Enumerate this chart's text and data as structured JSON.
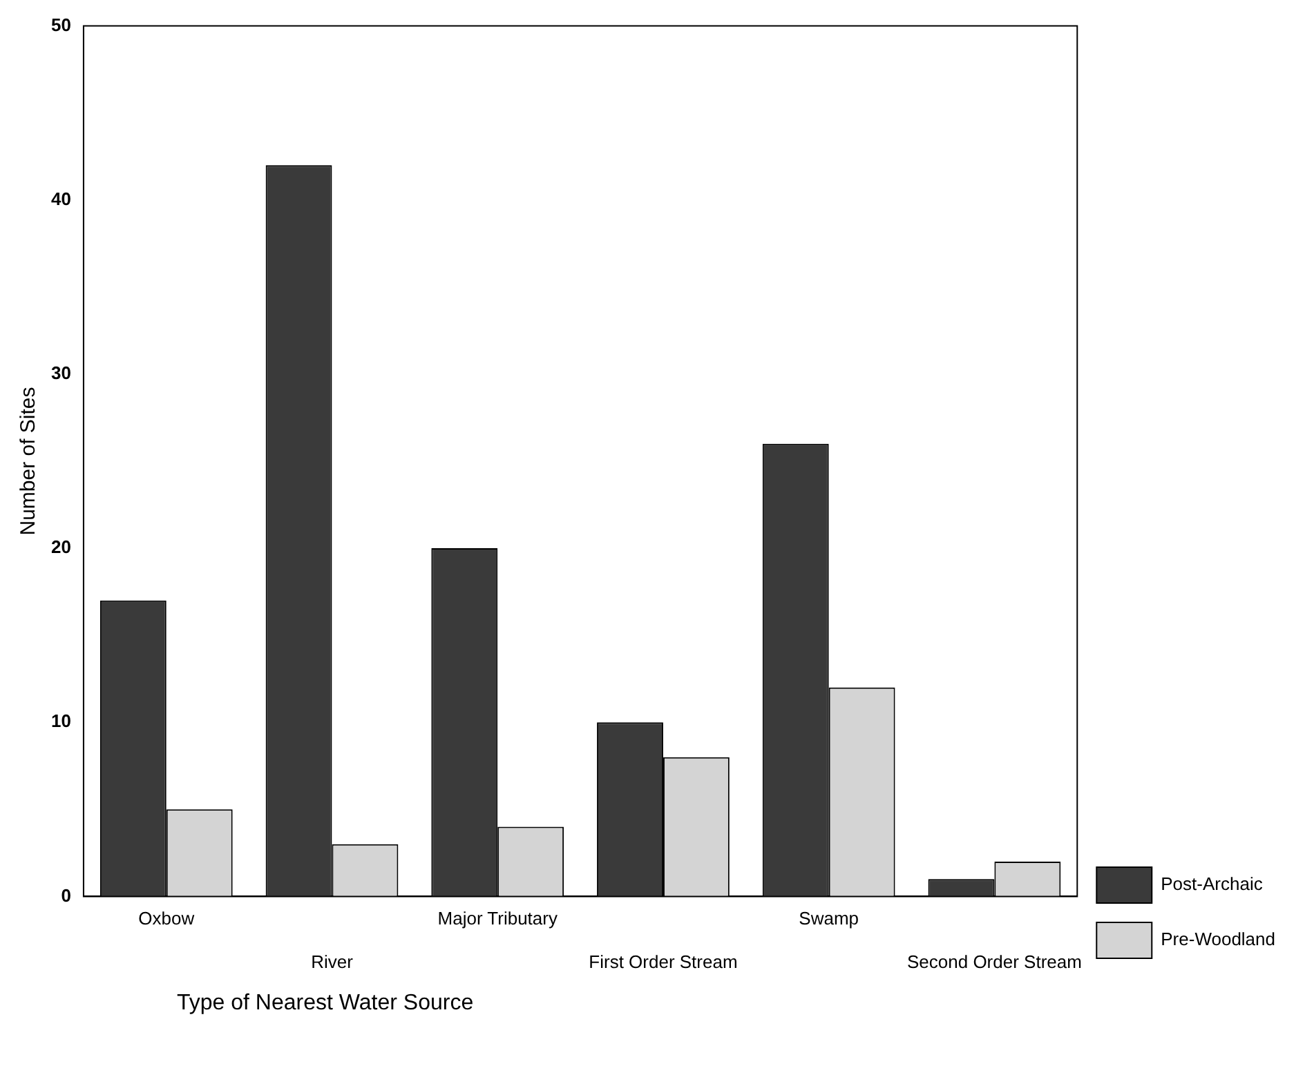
{
  "chart_data": {
    "type": "bar",
    "xlabel": "Type of Nearest Water Source",
    "ylabel": "Number of Sites",
    "categories": [
      "Oxbow",
      "River",
      "Major Tributary",
      "First Order Stream",
      "Swamp",
      "Second Order Stream"
    ],
    "series": [
      {
        "name": "Post-Archaic",
        "color": "#3a3a3a",
        "values": [
          17,
          42,
          20,
          10,
          26,
          1
        ]
      },
      {
        "name": "Pre-Woodland",
        "color": "#d4d4d4",
        "values": [
          5,
          3,
          4,
          8,
          12,
          2
        ]
      }
    ],
    "ylim": [
      0,
      50
    ],
    "yticks": [
      0,
      10,
      20,
      30,
      40,
      50
    ],
    "grid": false,
    "legend": "right"
  }
}
